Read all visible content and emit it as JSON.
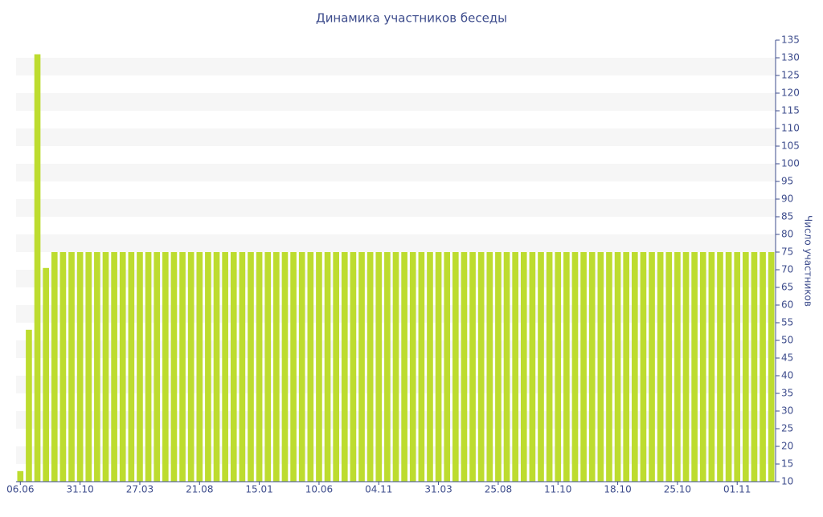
{
  "chart_data": {
    "type": "bar",
    "title": "Динамика участников беседы",
    "y_label": "Число участников",
    "categories": [
      "06.06",
      null,
      null,
      null,
      null,
      null,
      null,
      "31.10",
      null,
      null,
      null,
      null,
      null,
      null,
      "27.03",
      null,
      null,
      null,
      null,
      null,
      null,
      "21.08",
      null,
      null,
      null,
      null,
      null,
      null,
      "15.01",
      null,
      null,
      null,
      null,
      null,
      null,
      "10.06",
      null,
      null,
      null,
      null,
      null,
      null,
      "04.11",
      null,
      null,
      null,
      null,
      null,
      null,
      "31.03",
      null,
      null,
      null,
      null,
      null,
      null,
      "25.08",
      null,
      null,
      null,
      null,
      null,
      null,
      "11.10",
      null,
      null,
      null,
      null,
      null,
      null,
      "18.10",
      null,
      null,
      null,
      null,
      null,
      null,
      "25.10",
      null,
      null,
      null,
      null,
      null,
      null,
      "01.11",
      null,
      null,
      null,
      null
    ],
    "values": [
      13,
      53,
      131,
      70.5,
      75,
      75,
      75,
      75,
      75,
      75,
      75,
      75,
      75,
      75,
      75,
      75,
      75,
      75,
      75,
      75,
      75,
      75,
      75,
      75,
      75,
      75,
      75,
      75,
      75,
      75,
      75,
      75,
      75,
      75,
      75,
      75,
      75,
      75,
      75,
      75,
      75,
      75,
      75,
      75,
      75,
      75,
      75,
      75,
      75,
      75,
      75,
      75,
      75,
      75,
      75,
      75,
      75,
      75,
      75,
      75,
      75,
      75,
      75,
      75,
      75,
      75,
      75,
      75,
      75,
      75,
      75,
      75,
      75,
      75,
      75,
      75,
      75,
      75,
      75,
      75,
      75,
      75,
      75,
      75,
      75,
      75,
      75,
      75,
      75
    ],
    "color": "#bddc2f",
    "ylim": [
      10,
      135
    ],
    "yticks": [
      10,
      15,
      20,
      25,
      30,
      35,
      40,
      45,
      50,
      55,
      60,
      65,
      70,
      75,
      80,
      85,
      90,
      95,
      100,
      105,
      110,
      115,
      120,
      125,
      130,
      135
    ],
    "grid": true,
    "y_axis_side": "right"
  }
}
